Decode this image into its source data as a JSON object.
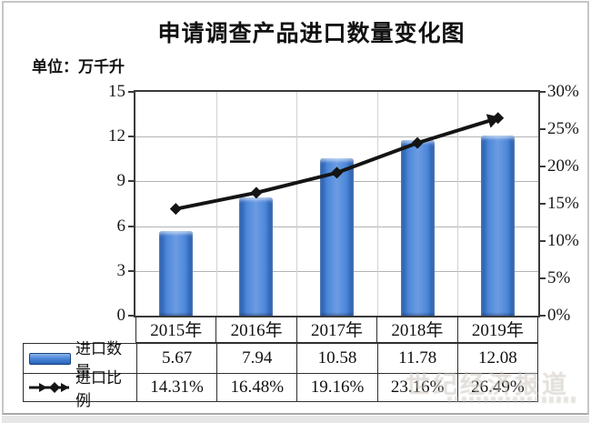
{
  "header": {
    "title": "申请调查产品进口数量变化图",
    "unit_label": "单位：万千升"
  },
  "page": {
    "watermark": "世纪经济报道"
  },
  "colors": {
    "bar_fill": "#3b78cf",
    "bar_edge": "#1f55a4",
    "line": "#141414",
    "grid": "#b3b3b3",
    "border": "#2f2f2f"
  },
  "chart_data": {
    "type": "bar",
    "subtype": "bar+line combo with data table",
    "title": "申请调查产品进口数量变化图",
    "unit": "万千升",
    "categories": [
      "2015年",
      "2016年",
      "2017年",
      "2018年",
      "2019年"
    ],
    "series": [
      {
        "name": "进口数量",
        "type": "bar",
        "axis": "left",
        "color": "#3b78cf",
        "values": [
          5.67,
          7.94,
          10.58,
          11.78,
          12.08
        ],
        "display_values": [
          "5.67",
          "7.94",
          "10.58",
          "11.78",
          "12.08"
        ]
      },
      {
        "name": "进口比例",
        "type": "line",
        "axis": "right",
        "color": "#141414",
        "marker": "diamond",
        "arrow_end": true,
        "values": [
          14.31,
          16.48,
          19.16,
          23.16,
          26.49
        ],
        "display_values": [
          "14.31%",
          "16.48%",
          "19.16%",
          "23.16%",
          "26.49%"
        ]
      }
    ],
    "left_axis": {
      "min": 0,
      "max": 15,
      "step": 3,
      "ticks": [
        "0",
        "3",
        "6",
        "9",
        "12",
        "15"
      ]
    },
    "right_axis": {
      "min": 0,
      "max": 30,
      "step": 5,
      "ticks": [
        "0%",
        "5%",
        "10%",
        "15%",
        "20%",
        "25%",
        "30%"
      ]
    },
    "grid": true,
    "legend_position": "data-table",
    "data_table_shown": true
  }
}
